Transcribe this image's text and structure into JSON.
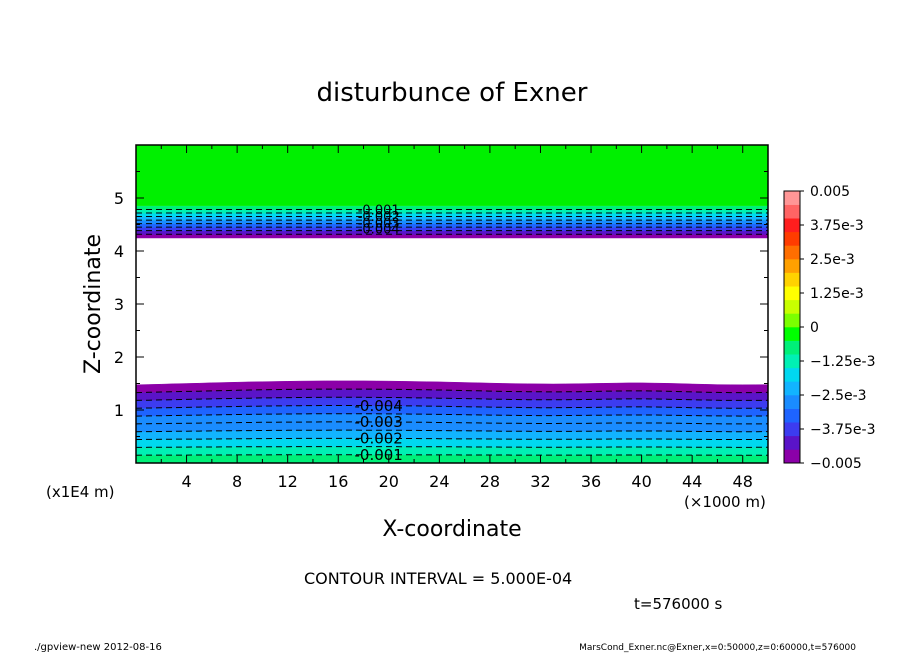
{
  "chart_data": {
    "type": "heatmap",
    "title": "disturbunce of Exner",
    "xlabel": "X-coordinate",
    "ylabel": "Z-coordinate",
    "x_ticks": [
      "4",
      "8",
      "12",
      "16",
      "20",
      "24",
      "28",
      "32",
      "36",
      "40",
      "44",
      "48"
    ],
    "x_tick_values": [
      4,
      8,
      12,
      16,
      20,
      24,
      28,
      32,
      36,
      40,
      44,
      48
    ],
    "x_unit": "(×1000 m)",
    "y_ticks": [
      "1",
      "2",
      "3",
      "4",
      "5"
    ],
    "y_tick_values": [
      1,
      2,
      3,
      4,
      5
    ],
    "y_unit": "(x1E4 m)",
    "xlim": [
      0,
      50
    ],
    "ylim": [
      0,
      6
    ],
    "colorbar": {
      "labels": [
        "0.005",
        "3.75e-3",
        "2.5e-3",
        "1.25e-3",
        "0",
        "−1.25e-3",
        "−2.5e-3",
        "−3.75e-3",
        "−0.005"
      ],
      "range": [
        -0.005,
        0.005
      ],
      "colors": [
        "#8b00a8",
        "#5a14c8",
        "#3c3cf0",
        "#1e64ff",
        "#1a8cff",
        "#12b4ff",
        "#00d8f0",
        "#00f0b4",
        "#00f078",
        "#00ff00",
        "#7cff00",
        "#c8ff00",
        "#ffff00",
        "#ffd200",
        "#ffa000",
        "#ff6e00",
        "#ff3c00",
        "#ff1e1e",
        "#ff6464",
        "#ff9696"
      ]
    },
    "contour_interval_text": "CONTOUR INTERVAL = 5.000E-04",
    "contour_labels_top": [
      "-0.001",
      "-0.002",
      "-0.003",
      "-0.004"
    ],
    "contour_labels_bottom": [
      "-0.004",
      "-0.003",
      "-0.002",
      "-0.001"
    ],
    "bands": {
      "upper": {
        "z_base": 4.25,
        "z_top": 4.85,
        "min_value": -0.005,
        "max_value": 0.0
      },
      "lower": {
        "z_base": 0.0,
        "z_top": 1.5,
        "min_value": -0.005,
        "max_value": 0.0
      }
    },
    "time_label": "t=576000 s"
  },
  "footer": {
    "left": "./gpview-new  2012-08-16",
    "right": "MarsCond_Exner.nc@Exner,x=0:50000,z=0:60000,t=576000"
  }
}
